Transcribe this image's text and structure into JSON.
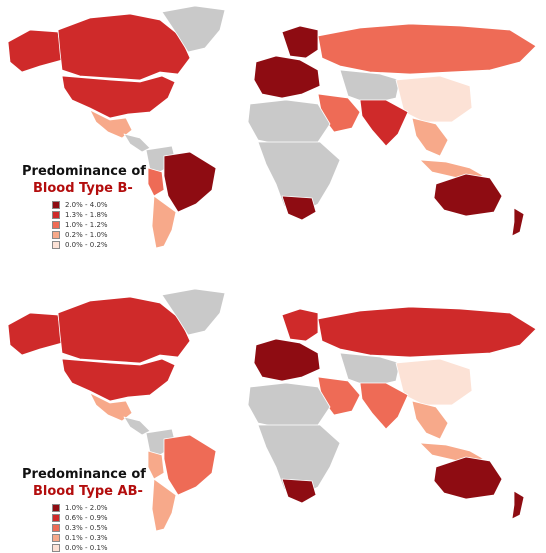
{
  "colors": {
    "no_data": "#c9c9c9",
    "border": "#ffffff",
    "ocean": "#ffffff",
    "title_red": "#b30d0d",
    "scale": [
      "#8e0c12",
      "#cf2a2a",
      "#ee6b56",
      "#f7a98a",
      "#fce2d6"
    ]
  },
  "maps": [
    {
      "title_line1": "Predominance of",
      "title_line2": "Blood Type B-",
      "legend": [
        {
          "label": "2.0% - 4.0%",
          "level": 0
        },
        {
          "label": "1.3% - 1.8%",
          "level": 1
        },
        {
          "label": "1.0% - 1.2%",
          "level": 2
        },
        {
          "label": "0.2% - 1.0%",
          "level": 3
        },
        {
          "label": "0.0% - 0.2%",
          "level": 4
        }
      ],
      "regions": [
        {
          "name": "canada",
          "level": 1
        },
        {
          "name": "usa",
          "level": 1
        },
        {
          "name": "alaska",
          "level": 1
        },
        {
          "name": "greenland",
          "level": null
        },
        {
          "name": "mexico",
          "level": 3
        },
        {
          "name": "central-america",
          "level": null
        },
        {
          "name": "brazil",
          "level": 0
        },
        {
          "name": "south-america-west",
          "level": null
        },
        {
          "name": "argentina-chile",
          "level": 3
        },
        {
          "name": "peru",
          "level": 2
        },
        {
          "name": "western-europe",
          "level": 0
        },
        {
          "name": "scandinavia",
          "level": 0
        },
        {
          "name": "russia",
          "level": 2
        },
        {
          "name": "central-asia",
          "level": null
        },
        {
          "name": "middle-east",
          "level": 2
        },
        {
          "name": "india",
          "level": 1
        },
        {
          "name": "china",
          "level": 4
        },
        {
          "name": "southeast-asia",
          "level": 3
        },
        {
          "name": "north-africa",
          "level": null
        },
        {
          "name": "africa",
          "level": null
        },
        {
          "name": "south-africa",
          "level": 0
        },
        {
          "name": "australia",
          "level": 0
        },
        {
          "name": "new-zealand",
          "level": 0
        },
        {
          "name": "indonesia",
          "level": 3
        }
      ]
    },
    {
      "title_line1": "Predominance of",
      "title_line2": "Blood Type AB-",
      "legend": [
        {
          "label": "1.0% - 2.0%",
          "level": 0
        },
        {
          "label": "0.6% - 0.9%",
          "level": 1
        },
        {
          "label": "0.3% - 0.5%",
          "level": 2
        },
        {
          "label": "0.1% - 0.3%",
          "level": 3
        },
        {
          "label": "0.0% - 0.1%",
          "level": 4
        }
      ],
      "regions": [
        {
          "name": "canada",
          "level": 1
        },
        {
          "name": "usa",
          "level": 1
        },
        {
          "name": "alaska",
          "level": 1
        },
        {
          "name": "greenland",
          "level": null
        },
        {
          "name": "mexico",
          "level": 3
        },
        {
          "name": "central-america",
          "level": null
        },
        {
          "name": "brazil",
          "level": 2
        },
        {
          "name": "south-america-west",
          "level": null
        },
        {
          "name": "argentina-chile",
          "level": 3
        },
        {
          "name": "peru",
          "level": 3
        },
        {
          "name": "western-europe",
          "level": 0
        },
        {
          "name": "scandinavia",
          "level": 1
        },
        {
          "name": "russia",
          "level": 1
        },
        {
          "name": "central-asia",
          "level": null
        },
        {
          "name": "middle-east",
          "level": 2
        },
        {
          "name": "india",
          "level": 2
        },
        {
          "name": "china",
          "level": 4
        },
        {
          "name": "southeast-asia",
          "level": 3
        },
        {
          "name": "north-africa",
          "level": null
        },
        {
          "name": "africa",
          "level": null
        },
        {
          "name": "south-africa",
          "level": 0
        },
        {
          "name": "australia",
          "level": 0
        },
        {
          "name": "new-zealand",
          "level": 0
        },
        {
          "name": "indonesia",
          "level": 3
        }
      ]
    }
  ]
}
